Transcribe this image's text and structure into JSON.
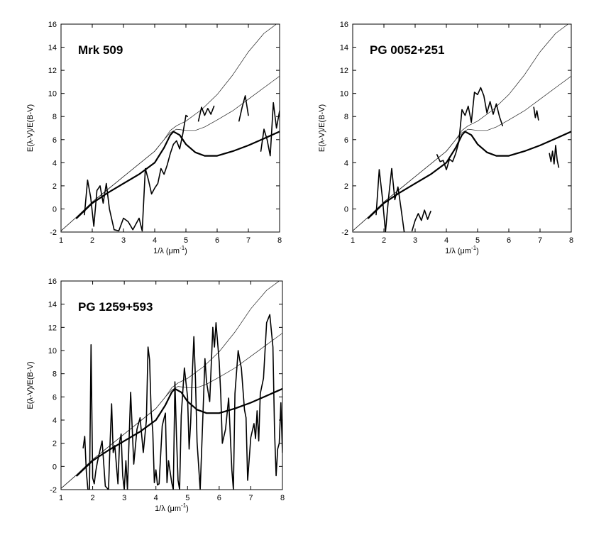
{
  "chart_data": [
    {
      "type": "line",
      "title": "Mrk 509",
      "xlabel": "1/λ (μm",
      "xlabel_sup": "-1",
      "xlabel_close": ")",
      "ylabel": "E(λ-V)/E(B-V)",
      "xlim": [
        1,
        8
      ],
      "ylim": [
        -2,
        16
      ],
      "xticks": [
        1,
        2,
        3,
        4,
        5,
        6,
        7,
        8
      ],
      "yticks": [
        -2,
        0,
        2,
        4,
        6,
        8,
        10,
        12,
        14,
        16
      ],
      "series": [
        {
          "style": "thin",
          "x": [
            1.0,
            1.5,
            2.0,
            2.5,
            3.0,
            3.5,
            4.0,
            4.3,
            4.5,
            4.7,
            5.0,
            5.5,
            6.0,
            6.5,
            7.0,
            7.5,
            8.0
          ],
          "y": [
            -1.9,
            -0.7,
            0.6,
            1.7,
            2.8,
            3.9,
            5.0,
            6.0,
            6.8,
            7.2,
            7.6,
            8.6,
            9.9,
            11.6,
            13.6,
            15.2,
            16.2
          ]
        },
        {
          "style": "thin",
          "x": [
            1.0,
            1.5,
            2.0,
            2.5,
            3.0,
            3.5,
            4.0,
            4.3,
            4.5,
            4.7,
            5.0,
            5.3,
            5.6,
            6.0,
            6.5,
            7.0,
            7.5,
            8.0
          ],
          "y": [
            -1.9,
            -0.7,
            0.6,
            1.7,
            2.8,
            3.9,
            5.0,
            6.0,
            6.6,
            6.9,
            6.8,
            6.8,
            7.1,
            7.7,
            8.5,
            9.5,
            10.5,
            11.5
          ]
        },
        {
          "style": "thick",
          "x": [
            1.5,
            2.0,
            2.5,
            3.0,
            3.5,
            4.0,
            4.3,
            4.5,
            4.6,
            4.8,
            5.0,
            5.3,
            5.6,
            6.0,
            6.5,
            7.0,
            7.5,
            8.0
          ],
          "y": [
            -0.8,
            0.5,
            1.4,
            2.2,
            3.0,
            4.0,
            5.3,
            6.4,
            6.7,
            6.4,
            5.6,
            4.9,
            4.6,
            4.6,
            5.0,
            5.5,
            6.1,
            6.7
          ]
        },
        {
          "style": "data",
          "x": [
            1.75,
            1.85,
            1.95,
            2.05,
            2.15,
            2.25,
            2.35,
            2.45,
            2.55,
            2.7,
            2.85,
            3.0,
            3.15,
            3.3,
            3.5,
            3.6,
            3.7,
            3.8,
            3.9,
            4.0,
            4.1,
            4.2,
            4.3,
            4.4,
            4.5,
            4.6,
            4.7,
            4.8,
            4.9,
            5.0,
            5.05
          ],
          "y": [
            -0.5,
            2.5,
            1.0,
            -1.5,
            1.6,
            2.0,
            0.5,
            2.2,
            0.0,
            -1.8,
            -1.9,
            -0.8,
            -1.1,
            -1.8,
            -0.8,
            -1.9,
            3.5,
            2.5,
            1.3,
            1.8,
            2.2,
            3.5,
            3.0,
            3.8,
            4.8,
            5.6,
            5.9,
            5.2,
            6.5,
            8.1,
            8.0
          ]
        },
        {
          "style": "data",
          "x": [
            5.4,
            5.5,
            5.6,
            5.7,
            5.8,
            5.9
          ],
          "y": [
            7.6,
            8.8,
            8.1,
            8.7,
            8.2,
            8.9
          ]
        },
        {
          "style": "data",
          "x": [
            6.7,
            6.8,
            6.9,
            7.0
          ],
          "y": [
            7.6,
            8.8,
            9.8,
            8.1
          ]
        },
        {
          "style": "data",
          "x": [
            7.4,
            7.5,
            7.6,
            7.7,
            7.8,
            7.9,
            8.0
          ],
          "y": [
            5.0,
            6.9,
            6.0,
            4.6,
            9.2,
            7.0,
            8.5
          ]
        }
      ]
    },
    {
      "type": "line",
      "title": "PG 0052+251",
      "xlabel": "1/λ (μm",
      "xlabel_sup": "-1",
      "xlabel_close": ")",
      "ylabel": "E(λ-V)/E(B-V)",
      "xlim": [
        1,
        8
      ],
      "ylim": [
        -2,
        16
      ],
      "xticks": [
        1,
        2,
        3,
        4,
        5,
        6,
        7,
        8
      ],
      "yticks": [
        -2,
        0,
        2,
        4,
        6,
        8,
        10,
        12,
        14,
        16
      ],
      "series": [
        {
          "style": "thin",
          "x": [
            1.0,
            1.5,
            2.0,
            2.5,
            3.0,
            3.5,
            4.0,
            4.3,
            4.5,
            4.7,
            5.0,
            5.5,
            6.0,
            6.5,
            7.0,
            7.5,
            8.0
          ],
          "y": [
            -1.9,
            -0.7,
            0.6,
            1.7,
            2.8,
            3.9,
            5.0,
            6.0,
            6.8,
            7.2,
            7.6,
            8.6,
            9.9,
            11.6,
            13.6,
            15.2,
            16.2
          ]
        },
        {
          "style": "thin",
          "x": [
            1.0,
            1.5,
            2.0,
            2.5,
            3.0,
            3.5,
            4.0,
            4.3,
            4.5,
            4.7,
            5.0,
            5.3,
            5.6,
            6.0,
            6.5,
            7.0,
            7.5,
            8.0
          ],
          "y": [
            -1.9,
            -0.7,
            0.6,
            1.7,
            2.8,
            3.9,
            5.0,
            6.0,
            6.6,
            6.9,
            6.8,
            6.8,
            7.1,
            7.7,
            8.5,
            9.5,
            10.5,
            11.5
          ]
        },
        {
          "style": "thick",
          "x": [
            1.5,
            2.0,
            2.5,
            3.0,
            3.5,
            4.0,
            4.3,
            4.5,
            4.6,
            4.8,
            5.0,
            5.3,
            5.6,
            6.0,
            6.5,
            7.0,
            7.5,
            8.0
          ],
          "y": [
            -0.8,
            0.5,
            1.4,
            2.2,
            3.0,
            4.0,
            5.3,
            6.4,
            6.7,
            6.4,
            5.6,
            4.9,
            4.6,
            4.6,
            5.0,
            5.5,
            6.1,
            6.7
          ]
        },
        {
          "style": "data",
          "x": [
            1.75,
            1.85,
            1.95,
            2.05,
            2.15,
            2.25,
            2.35,
            2.45,
            2.55,
            2.65
          ],
          "y": [
            -0.5,
            3.4,
            1.0,
            -2.0,
            1.0,
            3.5,
            0.8,
            1.9,
            0.0,
            -2.0
          ]
        },
        {
          "style": "data",
          "x": [
            2.9,
            3.0,
            3.1,
            3.2,
            3.3,
            3.4,
            3.5
          ],
          "y": [
            -1.9,
            -1.0,
            -0.4,
            -1.0,
            -0.1,
            -0.9,
            -0.2
          ]
        },
        {
          "style": "data",
          "x": [
            3.7,
            3.8,
            3.9,
            4.0,
            4.1,
            4.2,
            4.3,
            4.4,
            4.5,
            4.6,
            4.7,
            4.8,
            4.9,
            5.0,
            5.1,
            5.2,
            5.3,
            5.4,
            5.5,
            5.6,
            5.7,
            5.8
          ],
          "y": [
            4.7,
            4.1,
            4.2,
            3.4,
            4.3,
            4.1,
            4.8,
            5.8,
            8.6,
            8.1,
            8.9,
            7.5,
            10.1,
            9.9,
            10.5,
            9.8,
            8.3,
            9.3,
            8.2,
            9.1,
            8.0,
            7.2
          ]
        },
        {
          "style": "data",
          "x": [
            6.8,
            6.85,
            6.9,
            6.95
          ],
          "y": [
            8.8,
            7.9,
            8.5,
            7.7
          ]
        },
        {
          "style": "data",
          "x": [
            7.3,
            7.35,
            7.4,
            7.45,
            7.5,
            7.55,
            7.6
          ],
          "y": [
            4.8,
            4.1,
            5.0,
            3.9,
            5.5,
            4.2,
            3.6
          ]
        }
      ]
    },
    {
      "type": "line",
      "title": "PG 1259+593",
      "xlabel": "1/λ (μm",
      "xlabel_sup": "-1",
      "xlabel_close": ")",
      "ylabel": "E(λ-V)/E(B-V)",
      "xlim": [
        1,
        8
      ],
      "ylim": [
        -2,
        16
      ],
      "xticks": [
        1,
        2,
        3,
        4,
        5,
        6,
        7,
        8
      ],
      "yticks": [
        -2,
        0,
        2,
        4,
        6,
        8,
        10,
        12,
        14,
        16
      ],
      "series": [
        {
          "style": "thin",
          "x": [
            1.0,
            1.5,
            2.0,
            2.5,
            3.0,
            3.5,
            4.0,
            4.3,
            4.5,
            4.7,
            5.0,
            5.5,
            6.0,
            6.5,
            7.0,
            7.5,
            8.0
          ],
          "y": [
            -1.9,
            -0.7,
            0.6,
            1.7,
            2.8,
            3.9,
            5.0,
            6.0,
            6.8,
            7.2,
            7.6,
            8.6,
            9.9,
            11.6,
            13.6,
            15.2,
            16.2
          ]
        },
        {
          "style": "thin",
          "x": [
            1.0,
            1.5,
            2.0,
            2.5,
            3.0,
            3.5,
            4.0,
            4.3,
            4.5,
            4.7,
            5.0,
            5.3,
            5.6,
            6.0,
            6.5,
            7.0,
            7.5,
            8.0
          ],
          "y": [
            -1.9,
            -0.7,
            0.6,
            1.7,
            2.8,
            3.9,
            5.0,
            6.0,
            6.6,
            6.9,
            6.8,
            6.8,
            7.1,
            7.7,
            8.5,
            9.5,
            10.5,
            11.5
          ]
        },
        {
          "style": "thick",
          "x": [
            1.5,
            2.0,
            2.5,
            3.0,
            3.5,
            4.0,
            4.3,
            4.5,
            4.6,
            4.8,
            5.0,
            5.3,
            5.6,
            6.0,
            6.5,
            7.0,
            7.5,
            8.0
          ],
          "y": [
            -0.8,
            0.5,
            1.4,
            2.2,
            3.0,
            4.0,
            5.3,
            6.4,
            6.7,
            6.4,
            5.6,
            4.9,
            4.6,
            4.6,
            5.0,
            5.5,
            6.1,
            6.7
          ]
        },
        {
          "style": "data",
          "x": [
            1.7,
            1.75,
            1.8,
            1.85,
            1.9,
            1.95,
            2.0,
            2.05,
            2.1,
            2.15,
            2.2,
            2.3,
            2.4,
            2.5,
            2.55,
            2.6,
            2.65,
            2.7,
            2.8,
            2.85,
            2.9,
            2.95,
            3.0,
            3.05,
            3.1,
            3.2,
            3.3,
            3.4,
            3.5,
            3.6,
            3.7,
            3.75,
            3.8,
            3.85,
            3.9,
            3.95,
            4.0,
            4.05,
            4.1,
            4.2,
            4.25,
            4.3,
            4.35,
            4.4,
            4.5,
            4.55,
            4.6,
            4.65,
            4.7,
            4.75,
            4.8,
            4.9,
            5.0,
            5.05,
            5.1,
            5.15,
            5.2,
            5.25,
            5.3,
            5.4,
            5.5,
            5.55,
            5.6,
            5.7,
            5.8,
            5.85,
            5.9,
            6.0,
            6.05,
            6.1,
            6.2,
            6.3,
            6.4,
            6.45,
            6.5,
            6.6,
            6.65,
            6.7,
            6.8,
            6.85,
            6.9,
            7.0,
            7.1,
            7.15,
            7.2,
            7.25,
            7.3,
            7.4,
            7.5,
            7.6,
            7.7,
            7.75,
            7.8,
            7.85,
            7.9,
            7.95,
            8.0
          ],
          "y": [
            1.6,
            2.6,
            -0.5,
            -2.0,
            -2.0,
            10.5,
            -1.0,
            -1.5,
            -0.4,
            0.4,
            1.0,
            2.2,
            -1.7,
            -2.0,
            2.0,
            5.4,
            1.2,
            1.8,
            -1.5,
            2.1,
            2.8,
            -0.8,
            -2.0,
            0.5,
            -2.0,
            6.4,
            0.2,
            3.2,
            4.2,
            1.2,
            4.0,
            10.3,
            9.2,
            4.7,
            3.0,
            -1.4,
            -0.3,
            -1.6,
            -1.5,
            3.5,
            4.1,
            4.6,
            -1.4,
            0.5,
            -1.4,
            -2.0,
            7.3,
            2.6,
            -1.2,
            -2.0,
            4.4,
            8.5,
            6.0,
            1.5,
            3.8,
            8.0,
            11.2,
            7.6,
            2.1,
            -2.0,
            5.5,
            9.3,
            7.3,
            5.6,
            12.0,
            10.3,
            12.4,
            9.0,
            6.2,
            2.0,
            3.2,
            5.9,
            -0.3,
            -2.0,
            6.3,
            10.0,
            9.2,
            8.5,
            4.9,
            4.2,
            -1.2,
            2.5,
            3.7,
            2.4,
            4.8,
            2.2,
            6.3,
            7.6,
            12.4,
            13.1,
            10.3,
            3.0,
            -0.8,
            1.5,
            2.0,
            5.5,
            1.2
          ]
        }
      ]
    }
  ]
}
